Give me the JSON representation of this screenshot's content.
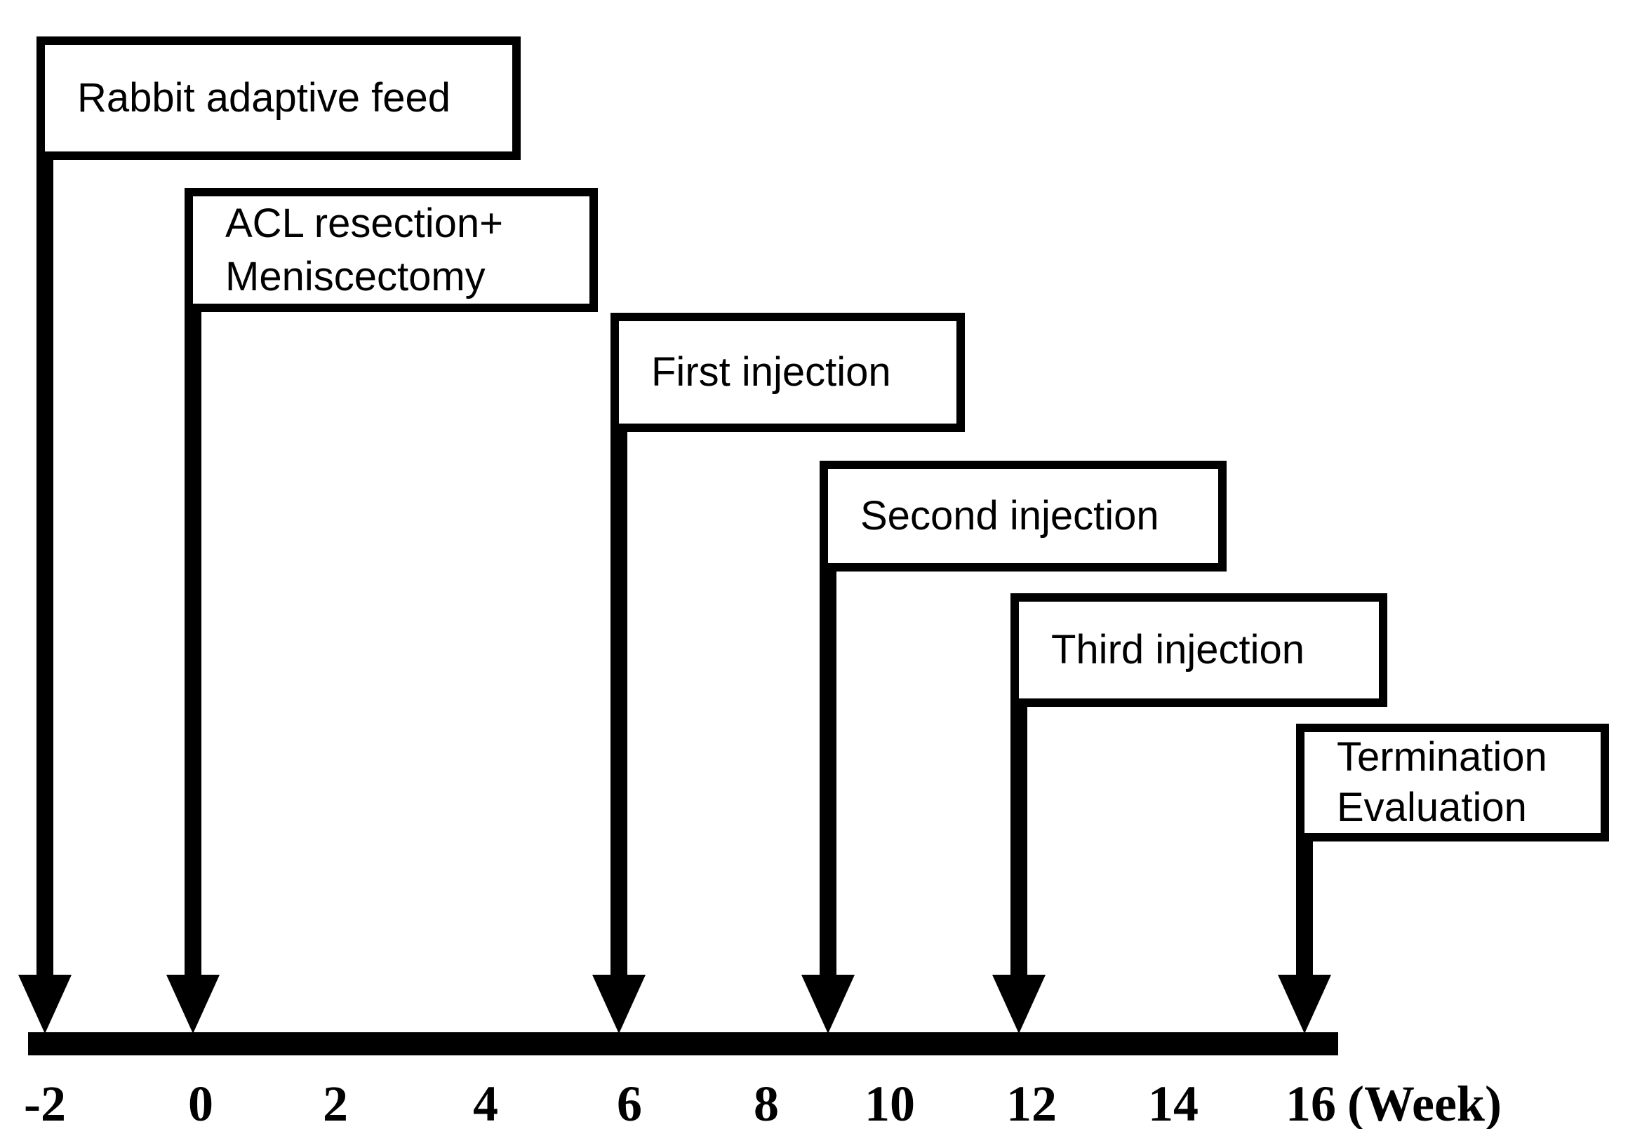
{
  "figure": {
    "type": "experimental-timeline-diagram",
    "background_color": "#ffffff",
    "ink_color": "#000000"
  },
  "events": [
    {
      "lines": [
        "Rabbit adaptive feed"
      ],
      "week": -2
    },
    {
      "lines": [
        "ACL resection+",
        "Meniscectomy"
      ],
      "week": 0
    },
    {
      "lines": [
        "First injection"
      ],
      "week": 6
    },
    {
      "lines": [
        "Second injection"
      ],
      "week": 9
    },
    {
      "lines": [
        "Third injection"
      ],
      "week": 12
    },
    {
      "lines": [
        "Termination",
        "Evaluation"
      ],
      "week": 16
    }
  ],
  "axis": {
    "ticks": [
      "-2",
      "0",
      "2",
      "4",
      "6",
      "8",
      "10",
      "12",
      "14",
      "16"
    ],
    "unit_label": "(Week)",
    "range_weeks": [
      -2,
      16
    ]
  }
}
